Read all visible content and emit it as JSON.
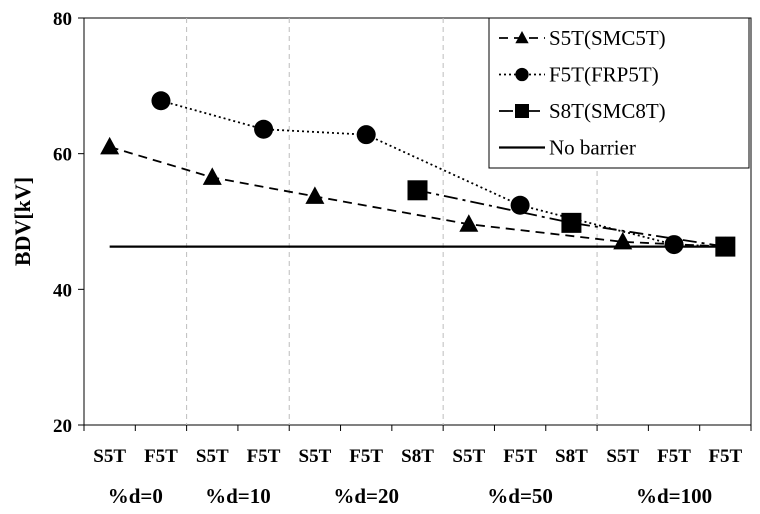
{
  "chart_data": {
    "type": "line",
    "ylabel": "BDV[kV]",
    "xlabel": "",
    "ylim": [
      20,
      80
    ],
    "yticks": [
      20,
      40,
      60,
      80
    ],
    "categories": [
      "S5T",
      "F5T",
      "S5T",
      "F5T",
      "S5T",
      "F5T",
      "S8T",
      "S5T",
      "F5T",
      "S8T",
      "S5T",
      "F5T",
      "F5T"
    ],
    "groups": [
      {
        "label": "%d=0",
        "from": 0,
        "to": 1
      },
      {
        "label": "%d=10",
        "from": 2,
        "to": 3
      },
      {
        "label": "%d=20",
        "from": 4,
        "to": 6
      },
      {
        "label": "%d=50",
        "from": 7,
        "to": 9
      },
      {
        "label": "%d=100",
        "from": 10,
        "to": 12
      }
    ],
    "series": [
      {
        "name": "S5T(SMC5T)",
        "marker": "triangle",
        "dash": "dashed",
        "points": [
          [
            0,
            61.0
          ],
          [
            2,
            56.5
          ],
          [
            4,
            53.7
          ],
          [
            7,
            49.6
          ],
          [
            10,
            47.0
          ],
          [
            12,
            46.3
          ]
        ]
      },
      {
        "name": "F5T(FRP5T)",
        "marker": "circle",
        "dash": "dotted",
        "points": [
          [
            1,
            67.8
          ],
          [
            3,
            63.6
          ],
          [
            5,
            62.8
          ],
          [
            8,
            52.4
          ],
          [
            11,
            46.6
          ],
          [
            12,
            46.3
          ]
        ]
      },
      {
        "name": "S8T(SMC8T)",
        "marker": "square",
        "dash": "dashdot",
        "points": [
          [
            6,
            54.6
          ],
          [
            9,
            49.8
          ],
          [
            12,
            46.3
          ]
        ]
      },
      {
        "name": "No barrier",
        "marker": "none",
        "dash": "solid",
        "points": [
          [
            0,
            46.3
          ],
          [
            12,
            46.3
          ]
        ]
      }
    ],
    "grid": "vertical dashed group separators",
    "legend_position": "top-right"
  }
}
